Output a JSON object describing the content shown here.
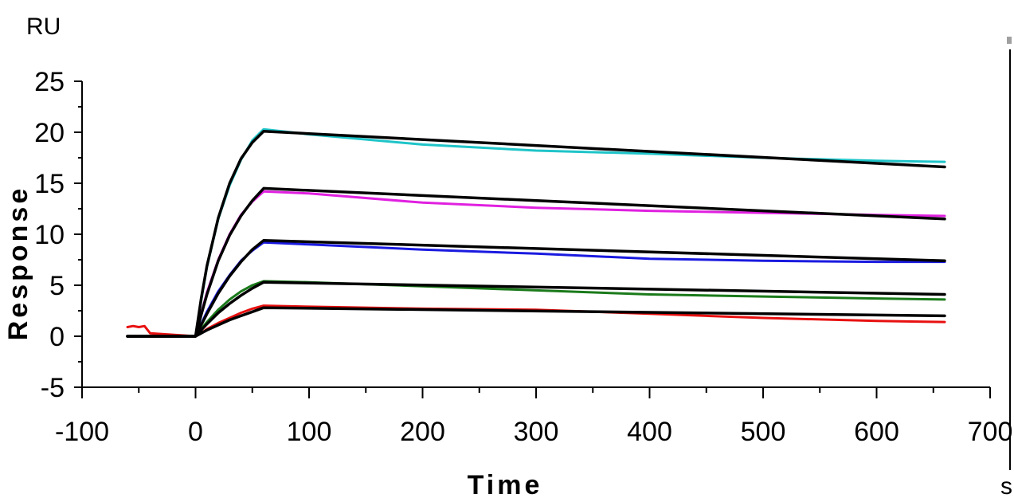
{
  "chart_data": {
    "type": "line",
    "xlabel": "Time",
    "ylabel": "Response",
    "x_unit": "s",
    "y_unit": "RU",
    "xlim": [
      -100,
      700
    ],
    "ylim": [
      -5,
      25
    ],
    "x_ticks": [
      -100,
      0,
      100,
      200,
      300,
      400,
      500,
      600,
      700
    ],
    "y_ticks": [
      -5,
      0,
      5,
      10,
      15,
      20,
      25
    ],
    "grid": false,
    "colors": {
      "cyan": "#1fc4c8",
      "magenta": "#e020e0",
      "blue": "#1a1ae0",
      "green": "#1a7a1a",
      "red": "#e81010",
      "fit": "#000000"
    },
    "series": [
      {
        "color": "cyan",
        "x": [
          -60,
          0,
          5,
          10,
          20,
          30,
          40,
          50,
          60,
          100,
          200,
          300,
          400,
          500,
          600,
          660
        ],
        "y": [
          0,
          0,
          3.5,
          6.8,
          11.5,
          14.8,
          17.3,
          19.2,
          20.3,
          19.8,
          18.8,
          18.2,
          17.9,
          17.5,
          17.2,
          17.1
        ]
      },
      {
        "color": "magenta",
        "x": [
          -60,
          0,
          5,
          10,
          20,
          30,
          40,
          50,
          60,
          100,
          200,
          300,
          400,
          500,
          600,
          660
        ],
        "y": [
          0,
          0,
          2.2,
          4.3,
          7.5,
          10.0,
          11.9,
          13.2,
          14.2,
          14.0,
          13.1,
          12.6,
          12.3,
          12.1,
          11.9,
          11.8
        ]
      },
      {
        "color": "blue",
        "x": [
          -60,
          0,
          5,
          10,
          20,
          30,
          40,
          50,
          60,
          100,
          200,
          300,
          400,
          500,
          600,
          660
        ],
        "y": [
          0,
          0,
          1.2,
          2.4,
          4.4,
          6.0,
          7.4,
          8.4,
          9.2,
          9.0,
          8.5,
          8.1,
          7.6,
          7.4,
          7.3,
          7.3
        ]
      },
      {
        "color": "green",
        "x": [
          -60,
          0,
          5,
          10,
          20,
          30,
          40,
          50,
          60,
          100,
          200,
          300,
          400,
          500,
          600,
          660
        ],
        "y": [
          0,
          0,
          0.7,
          1.4,
          2.6,
          3.6,
          4.4,
          5.0,
          5.4,
          5.3,
          4.9,
          4.5,
          4.1,
          3.9,
          3.7,
          3.6
        ]
      },
      {
        "color": "red",
        "x": [
          -60,
          -55,
          -50,
          -45,
          -40,
          0,
          5,
          10,
          20,
          30,
          40,
          50,
          60,
          100,
          200,
          300,
          400,
          450,
          500,
          600,
          660
        ],
        "y": [
          0.9,
          1.0,
          0.9,
          1.0,
          0.3,
          0,
          0.3,
          0.7,
          1.3,
          1.8,
          2.3,
          2.7,
          3.0,
          2.9,
          2.7,
          2.6,
          2.2,
          2.0,
          1.8,
          1.5,
          1.4
        ]
      }
    ],
    "fits": [
      {
        "color": "fit",
        "x": [
          -60,
          0,
          5,
          10,
          20,
          30,
          40,
          50,
          60,
          660
        ],
        "y": [
          0,
          0,
          3.7,
          6.9,
          11.6,
          15.0,
          17.4,
          19.0,
          20.1,
          16.6
        ]
      },
      {
        "color": "fit",
        "x": [
          -60,
          0,
          5,
          10,
          20,
          30,
          40,
          50,
          60,
          660
        ],
        "y": [
          0,
          0,
          2.1,
          4.1,
          7.4,
          9.9,
          11.8,
          13.3,
          14.5,
          11.5
        ]
      },
      {
        "color": "fit",
        "x": [
          -60,
          0,
          5,
          10,
          20,
          30,
          40,
          50,
          60,
          660
        ],
        "y": [
          0,
          0,
          1.1,
          2.2,
          4.2,
          5.9,
          7.3,
          8.5,
          9.4,
          7.4
        ]
      },
      {
        "color": "fit",
        "x": [
          -60,
          0,
          5,
          10,
          20,
          30,
          40,
          50,
          60,
          660
        ],
        "y": [
          0,
          0,
          0.6,
          1.2,
          2.3,
          3.2,
          4.0,
          4.7,
          5.3,
          4.1
        ]
      },
      {
        "color": "fit",
        "x": [
          -60,
          0,
          5,
          10,
          20,
          30,
          40,
          50,
          60,
          660
        ],
        "y": [
          0,
          0,
          0.3,
          0.6,
          1.1,
          1.6,
          2.0,
          2.4,
          2.8,
          2.0
        ]
      }
    ]
  }
}
